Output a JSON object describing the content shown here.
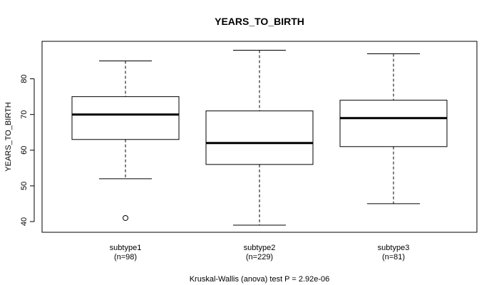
{
  "chart_data": {
    "type": "boxplot",
    "title": "YEARS_TO_BIRTH",
    "ylabel": "YEARS_TO_BIRTH",
    "xlabel": "",
    "ylim": [
      37,
      90.5
    ],
    "yticks": [
      40,
      50,
      60,
      70,
      80
    ],
    "grid": false,
    "footnote": "Kruskal-Wallis (anova) test P = 2.92e-06",
    "groups": [
      {
        "label": "subtype1",
        "n_label": "(n=98)",
        "whisker_low": 52,
        "q1": 63,
        "median": 70,
        "q3": 75,
        "whisker_high": 85,
        "outliers": [
          41
        ]
      },
      {
        "label": "subtype2",
        "n_label": "(n=229)",
        "whisker_low": 39,
        "q1": 56,
        "median": 62,
        "q3": 71,
        "whisker_high": 88,
        "outliers": []
      },
      {
        "label": "subtype3",
        "n_label": "(n=81)",
        "whisker_low": 45,
        "q1": 61,
        "median": 69,
        "q3": 74,
        "whisker_high": 87,
        "outliers": []
      }
    ]
  }
}
